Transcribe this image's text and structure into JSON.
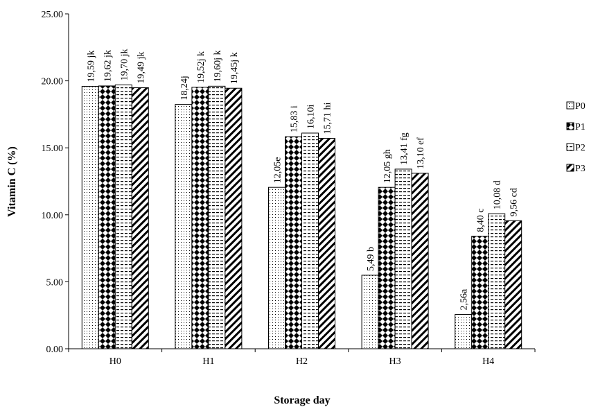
{
  "chart_data": {
    "type": "bar",
    "title": "",
    "xlabel": "Storage day",
    "ylabel": "Vitamin C (%)",
    "ylim": [
      0,
      25
    ],
    "y_ticks": [
      "0.00",
      "5.00",
      "10.00",
      "15.00",
      "20.00",
      "25.00"
    ],
    "grid": false,
    "legend_position": "right",
    "categories": [
      "H0",
      "H1",
      "H2",
      "H3",
      "H4"
    ],
    "series": [
      {
        "name": "P0",
        "pattern": "dots",
        "values": [
          19.59,
          18.24,
          12.05,
          5.49,
          2.56
        ],
        "labels": [
          "19,59 jk",
          "18,24j",
          "12,05e",
          "5,49 b",
          "2,56a"
        ]
      },
      {
        "name": "P1",
        "pattern": "diamonds",
        "values": [
          19.62,
          19.52,
          15.83,
          12.05,
          8.4
        ],
        "labels": [
          "19,62 jk",
          "19,52j k",
          "15,83 i",
          "12,05 gh",
          "8,40 c"
        ]
      },
      {
        "name": "P2",
        "pattern": "dashes",
        "values": [
          19.7,
          19.6,
          16.1,
          13.41,
          10.08
        ],
        "labels": [
          "19,70 jk",
          "19,60j k",
          "16,10i",
          "13,41 fg",
          "10,08 d"
        ]
      },
      {
        "name": "P3",
        "pattern": "diagonal",
        "values": [
          19.49,
          19.45,
          15.71,
          13.1,
          9.56
        ],
        "labels": [
          "19,49 jk",
          "19,45j k",
          "15,71 hi",
          "13,10 ef",
          "9,56 cd"
        ]
      }
    ]
  }
}
